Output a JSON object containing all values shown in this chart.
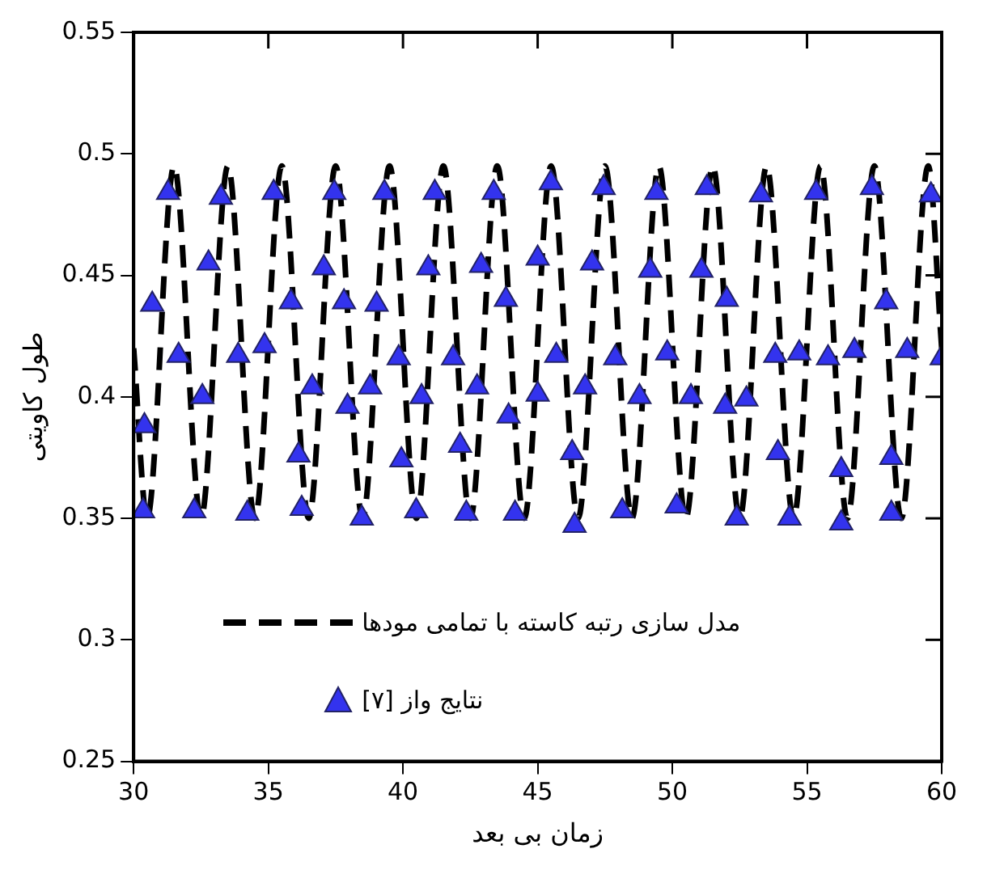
{
  "chart_data": {
    "type": "line",
    "xlabel": "زمان بی بعد",
    "ylabel": "طول کاویتی",
    "xlim": [
      30,
      60
    ],
    "xticks": [
      30,
      35,
      40,
      45,
      50,
      55,
      60
    ],
    "ylim": [
      0.25,
      0.55
    ],
    "yticks": [
      0.25,
      0.3,
      0.35,
      0.4,
      0.45,
      0.5,
      0.55
    ],
    "legend": "bottom",
    "series": [
      {
        "name": "مدل سازی رتبه کاسته با تمامی مودها",
        "color": "#000000",
        "line_style": "dashed",
        "marker": "none",
        "x": [
          30,
          30.5,
          31.5,
          32.5,
          33.5,
          34.5,
          35.5,
          36.5,
          37.5,
          38.5,
          39.5,
          40.5,
          41.5,
          42.5,
          43.5,
          44.5,
          45.5,
          46.5,
          47.5,
          48.5,
          49.5,
          50.5,
          51.5,
          52.5,
          53.5,
          54.5,
          55.5,
          56.5,
          57.5,
          58.5,
          59.5,
          60
        ],
        "values": [
          0.42,
          0.35,
          0.495,
          0.35,
          0.495,
          0.35,
          0.495,
          0.35,
          0.495,
          0.35,
          0.495,
          0.35,
          0.495,
          0.35,
          0.495,
          0.35,
          0.495,
          0.35,
          0.495,
          0.35,
          0.495,
          0.35,
          0.495,
          0.35,
          0.495,
          0.35,
          0.495,
          0.35,
          0.495,
          0.35,
          0.495,
          0.42
        ]
      },
      {
        "name": "نتایج واز [۷]",
        "type": "scatter",
        "color": "#3333ee",
        "marker": "triangle",
        "x": [
          30.35,
          30.4,
          30.69,
          31.28,
          31.67,
          32.25,
          32.55,
          32.78,
          33.24,
          33.88,
          34.22,
          34.86,
          35.2,
          35.84,
          36.12,
          36.24,
          36.63,
          37.06,
          37.45,
          37.81,
          37.94,
          38.47,
          38.78,
          39.02,
          39.31,
          39.84,
          39.94,
          40.49,
          40.69,
          40.94,
          41.18,
          41.86,
          42.12,
          42.35,
          42.75,
          42.9,
          43.37,
          43.82,
          43.92,
          44.16,
          45.0,
          45.0,
          45.49,
          45.69,
          46.28,
          46.37,
          46.76,
          47.02,
          47.45,
          47.88,
          48.14,
          48.78,
          49.18,
          49.41,
          49.81,
          50.16,
          50.69,
          51.08,
          51.28,
          51.96,
          52.02,
          52.39,
          52.75,
          53.29,
          53.82,
          53.92,
          54.35,
          54.71,
          55.34,
          55.78,
          56.27,
          56.27,
          56.76,
          57.41,
          57.94,
          58.13,
          58.13,
          58.72,
          59.6,
          60.0
        ],
        "values": [
          0.353,
          0.388,
          0.438,
          0.484,
          0.417,
          0.353,
          0.4,
          0.455,
          0.482,
          0.417,
          0.352,
          0.421,
          0.484,
          0.439,
          0.376,
          0.354,
          0.404,
          0.453,
          0.484,
          0.439,
          0.396,
          0.35,
          0.404,
          0.438,
          0.484,
          0.416,
          0.374,
          0.353,
          0.4,
          0.453,
          0.484,
          0.416,
          0.38,
          0.352,
          0.404,
          0.454,
          0.484,
          0.44,
          0.392,
          0.352,
          0.401,
          0.457,
          0.488,
          0.417,
          0.377,
          0.347,
          0.404,
          0.455,
          0.486,
          0.416,
          0.353,
          0.4,
          0.452,
          0.484,
          0.418,
          0.355,
          0.4,
          0.452,
          0.486,
          0.396,
          0.44,
          0.35,
          0.399,
          0.483,
          0.417,
          0.377,
          0.35,
          0.418,
          0.484,
          0.416,
          0.37,
          0.348,
          0.419,
          0.486,
          0.439,
          0.375,
          0.352,
          0.419,
          0.483,
          0.416
        ]
      }
    ]
  }
}
